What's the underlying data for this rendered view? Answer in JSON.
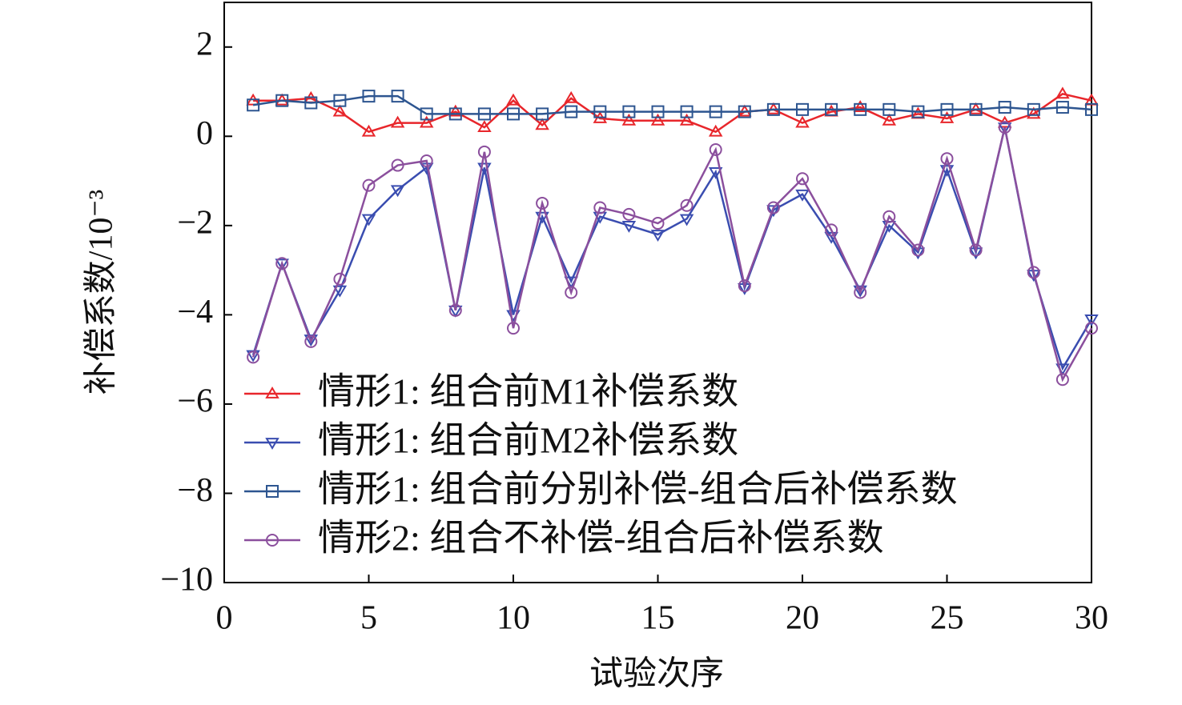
{
  "chart_data": {
    "type": "line",
    "x_label": "试验次序",
    "y_label": "补偿系数/10⁻³",
    "x": [
      1,
      2,
      3,
      4,
      5,
      6,
      7,
      8,
      9,
      10,
      11,
      12,
      13,
      14,
      15,
      16,
      17,
      18,
      19,
      20,
      21,
      22,
      23,
      24,
      25,
      26,
      27,
      28,
      29,
      30
    ],
    "xlim": [
      0,
      30
    ],
    "xticks": [
      0,
      5,
      10,
      15,
      20,
      25,
      30
    ],
    "ylim": [
      -10,
      3
    ],
    "yticks": [
      {
        "value": -10,
        "label": "−10"
      },
      {
        "value": -8,
        "label": "−8"
      },
      {
        "value": -6,
        "label": "−6"
      },
      {
        "value": -4,
        "label": "−4"
      },
      {
        "value": -2,
        "label": "−2"
      },
      0,
      2
    ],
    "legend": "lower-left",
    "series": [
      {
        "name": "情形1: 组合前M1补偿系数",
        "color": "#e8262b",
        "marker": "triangle-up",
        "values": [
          0.8,
          0.8,
          0.85,
          0.55,
          0.1,
          0.3,
          0.3,
          0.55,
          0.2,
          0.8,
          0.25,
          0.85,
          0.4,
          0.35,
          0.35,
          0.35,
          0.1,
          0.55,
          0.6,
          0.3,
          0.55,
          0.65,
          0.35,
          0.5,
          0.4,
          0.6,
          0.3,
          0.5,
          0.95,
          0.8
        ]
      },
      {
        "name": "情形1: 组合前M2补偿系数",
        "color": "#3a4db0",
        "marker": "triangle-down",
        "values": [
          -4.9,
          -2.85,
          -4.55,
          -3.45,
          -1.85,
          -1.2,
          -0.7,
          -3.9,
          -0.7,
          -4.0,
          -1.8,
          -3.25,
          -1.8,
          -2.0,
          -2.2,
          -1.85,
          -0.8,
          -3.4,
          -1.65,
          -1.3,
          -2.25,
          -3.45,
          -2.0,
          -2.6,
          -0.75,
          -2.6,
          0.2,
          -3.1,
          -5.2,
          -4.1
        ]
      },
      {
        "name": "情形1: 组合前分别补偿-组合后补偿系数",
        "color": "#2d5590",
        "marker": "square",
        "values": [
          0.7,
          0.8,
          0.75,
          0.8,
          0.9,
          0.9,
          0.5,
          0.5,
          0.5,
          0.5,
          0.5,
          0.55,
          0.55,
          0.55,
          0.55,
          0.55,
          0.55,
          0.55,
          0.6,
          0.6,
          0.6,
          0.6,
          0.6,
          0.55,
          0.6,
          0.6,
          0.65,
          0.6,
          0.65,
          0.6
        ]
      },
      {
        "name": "情形2: 组合不补偿-组合后补偿系数",
        "color": "#8b4f9d",
        "marker": "circle",
        "values": [
          -4.95,
          -2.85,
          -4.6,
          -3.2,
          -1.1,
          -0.65,
          -0.55,
          -3.9,
          -0.35,
          -4.3,
          -1.5,
          -3.5,
          -1.6,
          -1.75,
          -1.95,
          -1.55,
          -0.3,
          -3.35,
          -1.6,
          -0.95,
          -2.1,
          -3.5,
          -1.8,
          -2.55,
          -0.5,
          -2.55,
          0.2,
          -3.05,
          -5.45,
          -4.3
        ]
      }
    ]
  }
}
